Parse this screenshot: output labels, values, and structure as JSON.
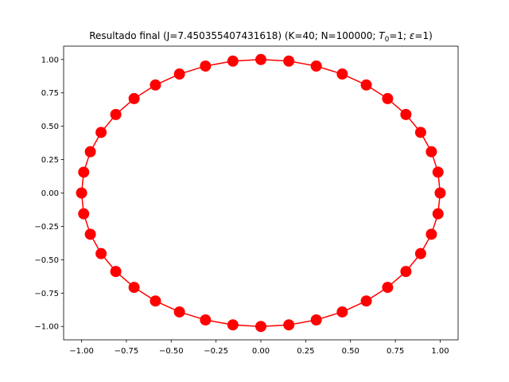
{
  "chart_data": {
    "type": "line",
    "title_main": "Resultado final (J=7.450355407431618) (K=40; N=100000; ",
    "title_t_sym": "T",
    "title_t_sub": "0",
    "title_t_val": "=1; ",
    "title_eps_sym": "ε",
    "title_eps_val": "=1)",
    "xlim": [
      -1.1,
      1.1
    ],
    "ylim": [
      -1.1,
      1.1
    ],
    "x_ticks": [
      -1.0,
      -0.75,
      -0.5,
      -0.25,
      0.0,
      0.25,
      0.5,
      0.75,
      1.0
    ],
    "x_tick_labels": [
      "−1.00",
      "−0.75",
      "−0.50",
      "−0.25",
      "0.00",
      "0.25",
      "0.50",
      "0.75",
      "1.00"
    ],
    "y_ticks": [
      -1.0,
      -0.75,
      -0.5,
      -0.25,
      0.0,
      0.25,
      0.5,
      0.75,
      1.0
    ],
    "y_tick_labels": [
      "−1.00",
      "−0.75",
      "−0.50",
      "−0.25",
      "0.00",
      "0.25",
      "0.50",
      "0.75",
      "1.00"
    ],
    "grid": false,
    "color": "#ff0000",
    "num_points": 40,
    "series": [
      {
        "x": [
          1.0,
          0.988,
          0.951,
          0.891,
          0.809,
          0.707,
          0.588,
          0.454,
          0.309,
          0.156,
          0.0,
          -0.156,
          -0.309,
          -0.454,
          -0.588,
          -0.707,
          -0.809,
          -0.891,
          -0.951,
          -0.988,
          -1.0,
          -0.988,
          -0.951,
          -0.891,
          -0.809,
          -0.707,
          -0.588,
          -0.454,
          -0.309,
          -0.156,
          0.0,
          0.156,
          0.309,
          0.454,
          0.588,
          0.707,
          0.809,
          0.891,
          0.951,
          0.988
        ],
        "y": [
          0.0,
          0.156,
          0.309,
          0.454,
          0.588,
          0.707,
          0.809,
          0.891,
          0.951,
          0.988,
          1.0,
          0.988,
          0.951,
          0.891,
          0.809,
          0.707,
          0.588,
          0.454,
          0.309,
          0.156,
          0.0,
          -0.156,
          -0.309,
          -0.454,
          -0.588,
          -0.707,
          -0.809,
          -0.891,
          -0.951,
          -0.988,
          -1.0,
          -0.988,
          -0.951,
          -0.891,
          -0.809,
          -0.707,
          -0.588,
          -0.454,
          -0.309,
          -0.156
        ]
      }
    ]
  }
}
